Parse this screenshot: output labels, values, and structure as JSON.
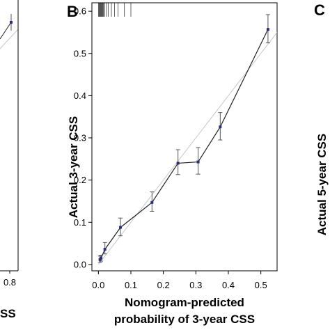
{
  "panels": {
    "left_letter": "",
    "center_letter": "B",
    "right_letter": "C",
    "left_tick": "0.8",
    "left_xlabel_fragment": "SS",
    "right_ylabel": "Actual 5-year CSS"
  },
  "chart_data": {
    "type": "line",
    "xlabel_line1": "Nomogram-predicted",
    "xlabel_line2": "probability of 3-year CSS",
    "ylabel": "Actual 3-year CSS",
    "xlim": [
      -0.02,
      0.55
    ],
    "ylim": [
      -0.015,
      0.62
    ],
    "x_ticks": [
      0.0,
      0.1,
      0.2,
      0.3,
      0.4,
      0.5
    ],
    "x_tick_labels": [
      "0.0",
      "0.1",
      "0.2",
      "0.3",
      "0.4",
      "0.5"
    ],
    "y_ticks": [
      0.0,
      0.1,
      0.2,
      0.3,
      0.4,
      0.5,
      0.6
    ],
    "y_tick_labels": [
      "0.0",
      "0.1",
      "0.2",
      "0.3",
      "0.4",
      "0.5",
      "0.6"
    ],
    "grid": false,
    "reference_line": {
      "x": [
        0.0,
        0.55
      ],
      "y": [
        0.0,
        0.55
      ]
    },
    "series": [
      {
        "points": [
          {
            "x": 0.005,
            "y": 0.012,
            "lo": 0.005,
            "hi": 0.02
          },
          {
            "x": 0.008,
            "y": 0.015,
            "lo": 0.008,
            "hi": 0.022
          },
          {
            "x": 0.02,
            "y": 0.036,
            "lo": 0.025,
            "hi": 0.052
          },
          {
            "x": 0.068,
            "y": 0.088,
            "lo": 0.068,
            "hi": 0.11
          },
          {
            "x": 0.165,
            "y": 0.147,
            "lo": 0.126,
            "hi": 0.172
          },
          {
            "x": 0.245,
            "y": 0.24,
            "lo": 0.213,
            "hi": 0.272
          },
          {
            "x": 0.307,
            "y": 0.243,
            "lo": 0.214,
            "hi": 0.277
          },
          {
            "x": 0.375,
            "y": 0.326,
            "lo": 0.295,
            "hi": 0.36
          },
          {
            "x": 0.522,
            "y": 0.557,
            "lo": 0.525,
            "hi": 0.592
          }
        ]
      }
    ],
    "rug_x": [
      0.0,
      0.002,
      0.004,
      0.006,
      0.008,
      0.01,
      0.012,
      0.014,
      0.016,
      0.02,
      0.025,
      0.03,
      0.04,
      0.05,
      0.06,
      0.08,
      0.1
    ]
  },
  "colors": {
    "line": "#222222",
    "point": "#2b2f7a",
    "reference": "#c8c8c8",
    "errorbar": "#555555"
  }
}
